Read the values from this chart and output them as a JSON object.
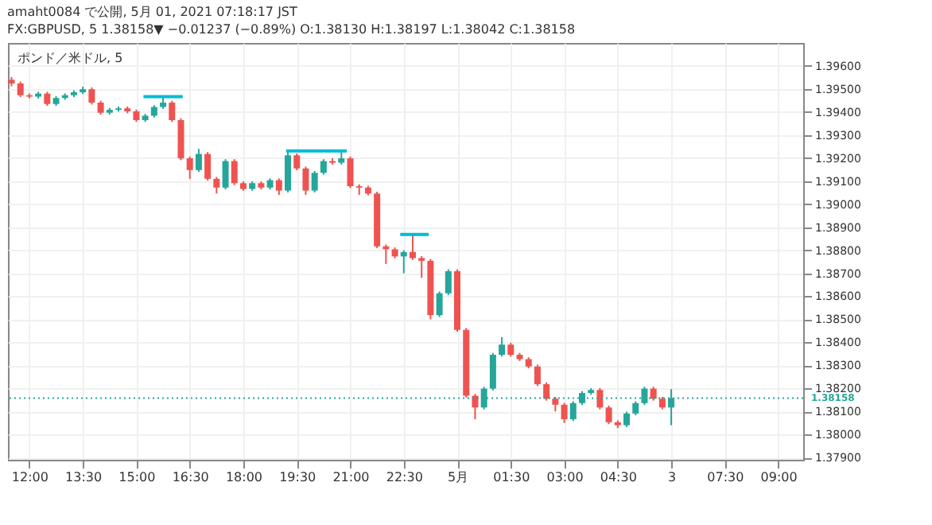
{
  "chart_data": {
    "type": "candlestick",
    "title": "amaht0084 で公開, 5月 01, 2021 07:18:17 JST",
    "subtitle": "FX:GBPUSD, 5 1.38158▼ −0.01237 (−0.89%) O:1.38130 H:1.38197 L:1.38042 C:1.38158",
    "annotations": [
      "ポンド／米ドル, 5"
    ],
    "x": [
      "2021-04-30T11:30",
      "2021-04-30T11:45",
      "2021-04-30T12:00",
      "2021-04-30T12:15",
      "2021-04-30T12:30",
      "2021-04-30T12:45",
      "2021-04-30T13:00",
      "2021-04-30T13:15",
      "2021-04-30T13:30",
      "2021-04-30T13:45",
      "2021-04-30T14:00",
      "2021-04-30T14:15",
      "2021-04-30T14:30",
      "2021-04-30T14:45",
      "2021-04-30T15:00",
      "2021-04-30T15:15",
      "2021-04-30T15:30",
      "2021-04-30T15:45",
      "2021-04-30T16:00",
      "2021-04-30T16:15",
      "2021-04-30T16:30",
      "2021-04-30T16:45",
      "2021-04-30T17:00",
      "2021-04-30T17:15",
      "2021-04-30T17:30",
      "2021-04-30T17:45",
      "2021-04-30T18:00",
      "2021-04-30T18:15",
      "2021-04-30T18:30",
      "2021-04-30T18:45",
      "2021-04-30T19:00",
      "2021-04-30T19:15",
      "2021-04-30T19:30",
      "2021-04-30T19:45",
      "2021-04-30T20:00",
      "2021-04-30T20:15",
      "2021-04-30T20:30",
      "2021-04-30T20:45",
      "2021-04-30T21:00",
      "2021-04-30T21:15",
      "2021-04-30T21:30",
      "2021-04-30T21:45",
      "2021-04-30T22:00",
      "2021-04-30T22:15",
      "2021-04-30T22:30",
      "2021-04-30T22:45",
      "2021-04-30T23:00",
      "2021-04-30T23:15",
      "2021-04-30T23:30",
      "2021-04-30T23:45",
      "2021-05-01T00:00",
      "2021-05-01T00:15",
      "2021-05-01T00:30",
      "2021-05-01T00:45",
      "2021-05-01T01:00",
      "2021-05-01T01:15",
      "2021-05-01T01:30",
      "2021-05-01T01:45",
      "2021-05-01T02:00",
      "2021-05-01T02:15",
      "2021-05-01T02:30",
      "2021-05-01T02:45",
      "2021-05-01T03:00",
      "2021-05-01T03:15",
      "2021-05-01T03:30",
      "2021-05-01T03:45",
      "2021-05-01T04:00",
      "2021-05-01T04:15",
      "2021-05-01T04:30",
      "2021-05-01T04:45",
      "2021-05-01T05:00",
      "2021-05-01T05:15",
      "2021-05-01T05:30",
      "2021-05-01T05:45",
      "2021-05-01T06:00"
    ],
    "ohlc": [
      [
        1.3954,
        1.39552,
        1.39512,
        1.39524
      ],
      [
        1.39524,
        1.39532,
        1.39465,
        1.39473
      ],
      [
        1.39473,
        1.39481,
        1.39459,
        1.39467
      ],
      [
        1.39467,
        1.39488,
        1.39459,
        1.3948
      ],
      [
        1.3948,
        1.39488,
        1.39427,
        1.39435
      ],
      [
        1.39435,
        1.39469,
        1.39427,
        1.39461
      ],
      [
        1.39461,
        1.39481,
        1.39453,
        1.39473
      ],
      [
        1.39473,
        1.39494,
        1.39465,
        1.39486
      ],
      [
        1.39486,
        1.3951,
        1.39478,
        1.39499
      ],
      [
        1.39499,
        1.39507,
        1.39433,
        1.39441
      ],
      [
        1.39441,
        1.39449,
        1.39389,
        1.39397
      ],
      [
        1.39397,
        1.39418,
        1.39389,
        1.3941
      ],
      [
        1.3941,
        1.39424,
        1.39402,
        1.39416
      ],
      [
        1.39416,
        1.39424,
        1.39395,
        1.39403
      ],
      [
        1.39403,
        1.39411,
        1.39357,
        1.39365
      ],
      [
        1.39365,
        1.39392,
        1.39357,
        1.39384
      ],
      [
        1.39384,
        1.3943,
        1.39376,
        1.39422
      ],
      [
        1.39422,
        1.39467,
        1.39414,
        1.39441
      ],
      [
        1.39441,
        1.39449,
        1.39357,
        1.39365
      ],
      [
        1.39365,
        1.39373,
        1.39191,
        1.39199
      ],
      [
        1.39199,
        1.39207,
        1.3911,
        1.39148
      ],
      [
        1.39148,
        1.3924,
        1.3914,
        1.39218
      ],
      [
        1.39218,
        1.39226,
        1.39102,
        1.3911
      ],
      [
        1.3911,
        1.39118,
        1.39046,
        1.39072
      ],
      [
        1.39072,
        1.39195,
        1.39064,
        1.39187
      ],
      [
        1.39187,
        1.39195,
        1.39083,
        1.39091
      ],
      [
        1.39091,
        1.39099,
        1.39058,
        1.39066
      ],
      [
        1.39066,
        1.39099,
        1.39058,
        1.39091
      ],
      [
        1.39091,
        1.39099,
        1.39064,
        1.39072
      ],
      [
        1.39072,
        1.39112,
        1.39064,
        1.39104
      ],
      [
        1.39104,
        1.39112,
        1.3904,
        1.39059
      ],
      [
        1.39059,
        1.39231,
        1.39051,
        1.39212
      ],
      [
        1.39212,
        1.3922,
        1.39147,
        1.39155
      ],
      [
        1.39155,
        1.39163,
        1.3904,
        1.39059
      ],
      [
        1.39059,
        1.39144,
        1.39051,
        1.39136
      ],
      [
        1.39136,
        1.39195,
        1.39128,
        1.39187
      ],
      [
        1.39187,
        1.392,
        1.39172,
        1.3918
      ],
      [
        1.3918,
        1.39231,
        1.39172,
        1.39199
      ],
      [
        1.39199,
        1.39207,
        1.3907,
        1.39078
      ],
      [
        1.39078,
        1.39086,
        1.3904,
        1.39072
      ],
      [
        1.39072,
        1.3908,
        1.39038,
        1.39046
      ],
      [
        1.39046,
        1.39054,
        1.38809,
        1.38817
      ],
      [
        1.38817,
        1.38825,
        1.3874,
        1.38804
      ],
      [
        1.38804,
        1.38812,
        1.38765,
        1.38773
      ],
      [
        1.38773,
        1.388,
        1.387,
        1.38792
      ],
      [
        1.38792,
        1.38868,
        1.38758,
        1.38766
      ],
      [
        1.38766,
        1.38774,
        1.3868,
        1.38754
      ],
      [
        1.38754,
        1.38762,
        1.385,
        1.38518
      ],
      [
        1.38518,
        1.38621,
        1.3851,
        1.38613
      ],
      [
        1.38613,
        1.38717,
        1.38605,
        1.38709
      ],
      [
        1.38709,
        1.38717,
        1.38446,
        1.38454
      ],
      [
        1.38454,
        1.38462,
        1.3816,
        1.38168
      ],
      [
        1.38168,
        1.38176,
        1.38066,
        1.38117
      ],
      [
        1.38117,
        1.38207,
        1.38109,
        1.38199
      ],
      [
        1.38199,
        1.38354,
        1.38191,
        1.38346
      ],
      [
        1.38346,
        1.38422,
        1.38338,
        1.3839
      ],
      [
        1.3839,
        1.38398,
        1.38338,
        1.38346
      ],
      [
        1.38346,
        1.38354,
        1.38319,
        1.38327
      ],
      [
        1.38327,
        1.38335,
        1.38287,
        1.38295
      ],
      [
        1.38295,
        1.38303,
        1.3821,
        1.38218
      ],
      [
        1.38218,
        1.38226,
        1.38147,
        1.38155
      ],
      [
        1.38155,
        1.38163,
        1.381,
        1.38129
      ],
      [
        1.38129,
        1.38137,
        1.3805,
        1.38066
      ],
      [
        1.38066,
        1.38144,
        1.38058,
        1.38136
      ],
      [
        1.38136,
        1.38188,
        1.38128,
        1.3818
      ],
      [
        1.3818,
        1.38201,
        1.38172,
        1.38193
      ],
      [
        1.38193,
        1.38201,
        1.38109,
        1.38117
      ],
      [
        1.38117,
        1.38125,
        1.38045,
        1.38053
      ],
      [
        1.38053,
        1.38061,
        1.38027,
        1.3804
      ],
      [
        1.3804,
        1.38099,
        1.38032,
        1.38091
      ],
      [
        1.38091,
        1.38144,
        1.38083,
        1.38136
      ],
      [
        1.38136,
        1.38207,
        1.38128,
        1.38199
      ],
      [
        1.38199,
        1.38207,
        1.38147,
        1.38155
      ],
      [
        1.38155,
        1.38163,
        1.38109,
        1.38117
      ],
      [
        1.38117,
        1.38197,
        1.3804,
        1.38158
      ]
    ],
    "colors": [
      "#ef5350",
      "#ef5350",
      "#ef5350",
      "#26a69a",
      "#ef5350",
      "#26a69a",
      "#26a69a",
      "#26a69a",
      "#26a69a",
      "#ef5350",
      "#ef5350",
      "#26a69a",
      "#26a69a",
      "#ef5350",
      "#ef5350",
      "#26a69a",
      "#26a69a",
      "#26a69a",
      "#ef5350",
      "#ef5350",
      "#ef5350",
      "#26a69a",
      "#ef5350",
      "#ef5350",
      "#26a69a",
      "#ef5350",
      "#ef5350",
      "#26a69a",
      "#ef5350",
      "#26a69a",
      "#ef5350",
      "#26a69a",
      "#ef5350",
      "#ef5350",
      "#26a69a",
      "#26a69a",
      "#ef5350",
      "#26a69a",
      "#ef5350",
      "#ef5350",
      "#ef5350",
      "#ef5350",
      "#ef5350",
      "#ef5350",
      "#26a69a",
      "#ef5350",
      "#ef5350",
      "#ef5350",
      "#26a69a",
      "#26a69a",
      "#ef5350",
      "#ef5350",
      "#ef5350",
      "#26a69a",
      "#26a69a",
      "#26a69a",
      "#ef5350",
      "#ef5350",
      "#ef5350",
      "#ef5350",
      "#ef5350",
      "#ef5350",
      "#ef5350",
      "#26a69a",
      "#26a69a",
      "#26a69a",
      "#ef5350",
      "#ef5350",
      "#ef5350",
      "#26a69a",
      "#26a69a",
      "#26a69a",
      "#ef5350",
      "#ef5350",
      "#26a69a"
    ],
    "series": [
      {
        "type": "line",
        "color": "#00bcd4",
        "x": [
          "2021-04-30T15:12",
          "2021-04-30T16:18"
        ],
        "values": [
          1.39467,
          1.39467
        ]
      },
      {
        "type": "line",
        "color": "#00bcd4",
        "x": [
          "2021-04-30T19:12",
          "2021-04-30T20:54"
        ],
        "values": [
          1.39231,
          1.39231
        ]
      },
      {
        "type": "line",
        "color": "#00bcd4",
        "x": [
          "2021-04-30T22:24",
          "2021-04-30T23:12"
        ],
        "values": [
          1.38868,
          1.38868
        ]
      }
    ],
    "ref_lines": [
      {
        "axis": "y",
        "value": 1.38158,
        "label": "1.38158",
        "color": "#26a69a",
        "line_style": "dotted"
      }
    ],
    "xlim": [
      "2021-04-30T11:24",
      "2021-05-01T09:42"
    ],
    "xticks": [
      {
        "value": "2021-04-30T12:00",
        "label": "12:00"
      },
      {
        "value": "2021-04-30T13:30",
        "label": "13:30"
      },
      {
        "value": "2021-04-30T15:00",
        "label": "15:00"
      },
      {
        "value": "2021-04-30T16:30",
        "label": "16:30"
      },
      {
        "value": "2021-04-30T18:00",
        "label": "18:00"
      },
      {
        "value": "2021-04-30T19:30",
        "label": "19:30"
      },
      {
        "value": "2021-04-30T21:00",
        "label": "21:00"
      },
      {
        "value": "2021-04-30T22:30",
        "label": "22:30"
      },
      {
        "value": "2021-05-01T00:00",
        "label": "5月"
      },
      {
        "value": "2021-05-01T01:30",
        "label": "01:30"
      },
      {
        "value": "2021-05-01T03:00",
        "label": "03:00"
      },
      {
        "value": "2021-05-01T04:30",
        "label": "04:30"
      },
      {
        "value": "2021-05-01T06:00",
        "label": "3"
      },
      {
        "value": "2021-05-01T07:30",
        "label": "07:30"
      },
      {
        "value": "2021-05-01T09:00",
        "label": "09:00"
      }
    ],
    "ylim": [
      1.3789,
      1.397
    ],
    "yticks": [
      {
        "value": 1.379,
        "label": "1.37900"
      },
      {
        "value": 1.38,
        "label": "1.38000"
      },
      {
        "value": 1.381,
        "label": "1.38100"
      },
      {
        "value": 1.382,
        "label": "1.38200"
      },
      {
        "value": 1.383,
        "label": "1.38300"
      },
      {
        "value": 1.384,
        "label": "1.38400"
      },
      {
        "value": 1.385,
        "label": "1.38500"
      },
      {
        "value": 1.386,
        "label": "1.38600"
      },
      {
        "value": 1.387,
        "label": "1.38700"
      },
      {
        "value": 1.388,
        "label": "1.38800"
      },
      {
        "value": 1.389,
        "label": "1.38900"
      },
      {
        "value": 1.39,
        "label": "1.39000"
      },
      {
        "value": 1.391,
        "label": "1.39100"
      },
      {
        "value": 1.392,
        "label": "1.39200"
      },
      {
        "value": 1.393,
        "label": "1.39300"
      },
      {
        "value": 1.394,
        "label": "1.39400"
      },
      {
        "value": 1.395,
        "label": "1.39500"
      },
      {
        "value": 1.396,
        "label": "1.39600"
      }
    ],
    "grid": true
  }
}
